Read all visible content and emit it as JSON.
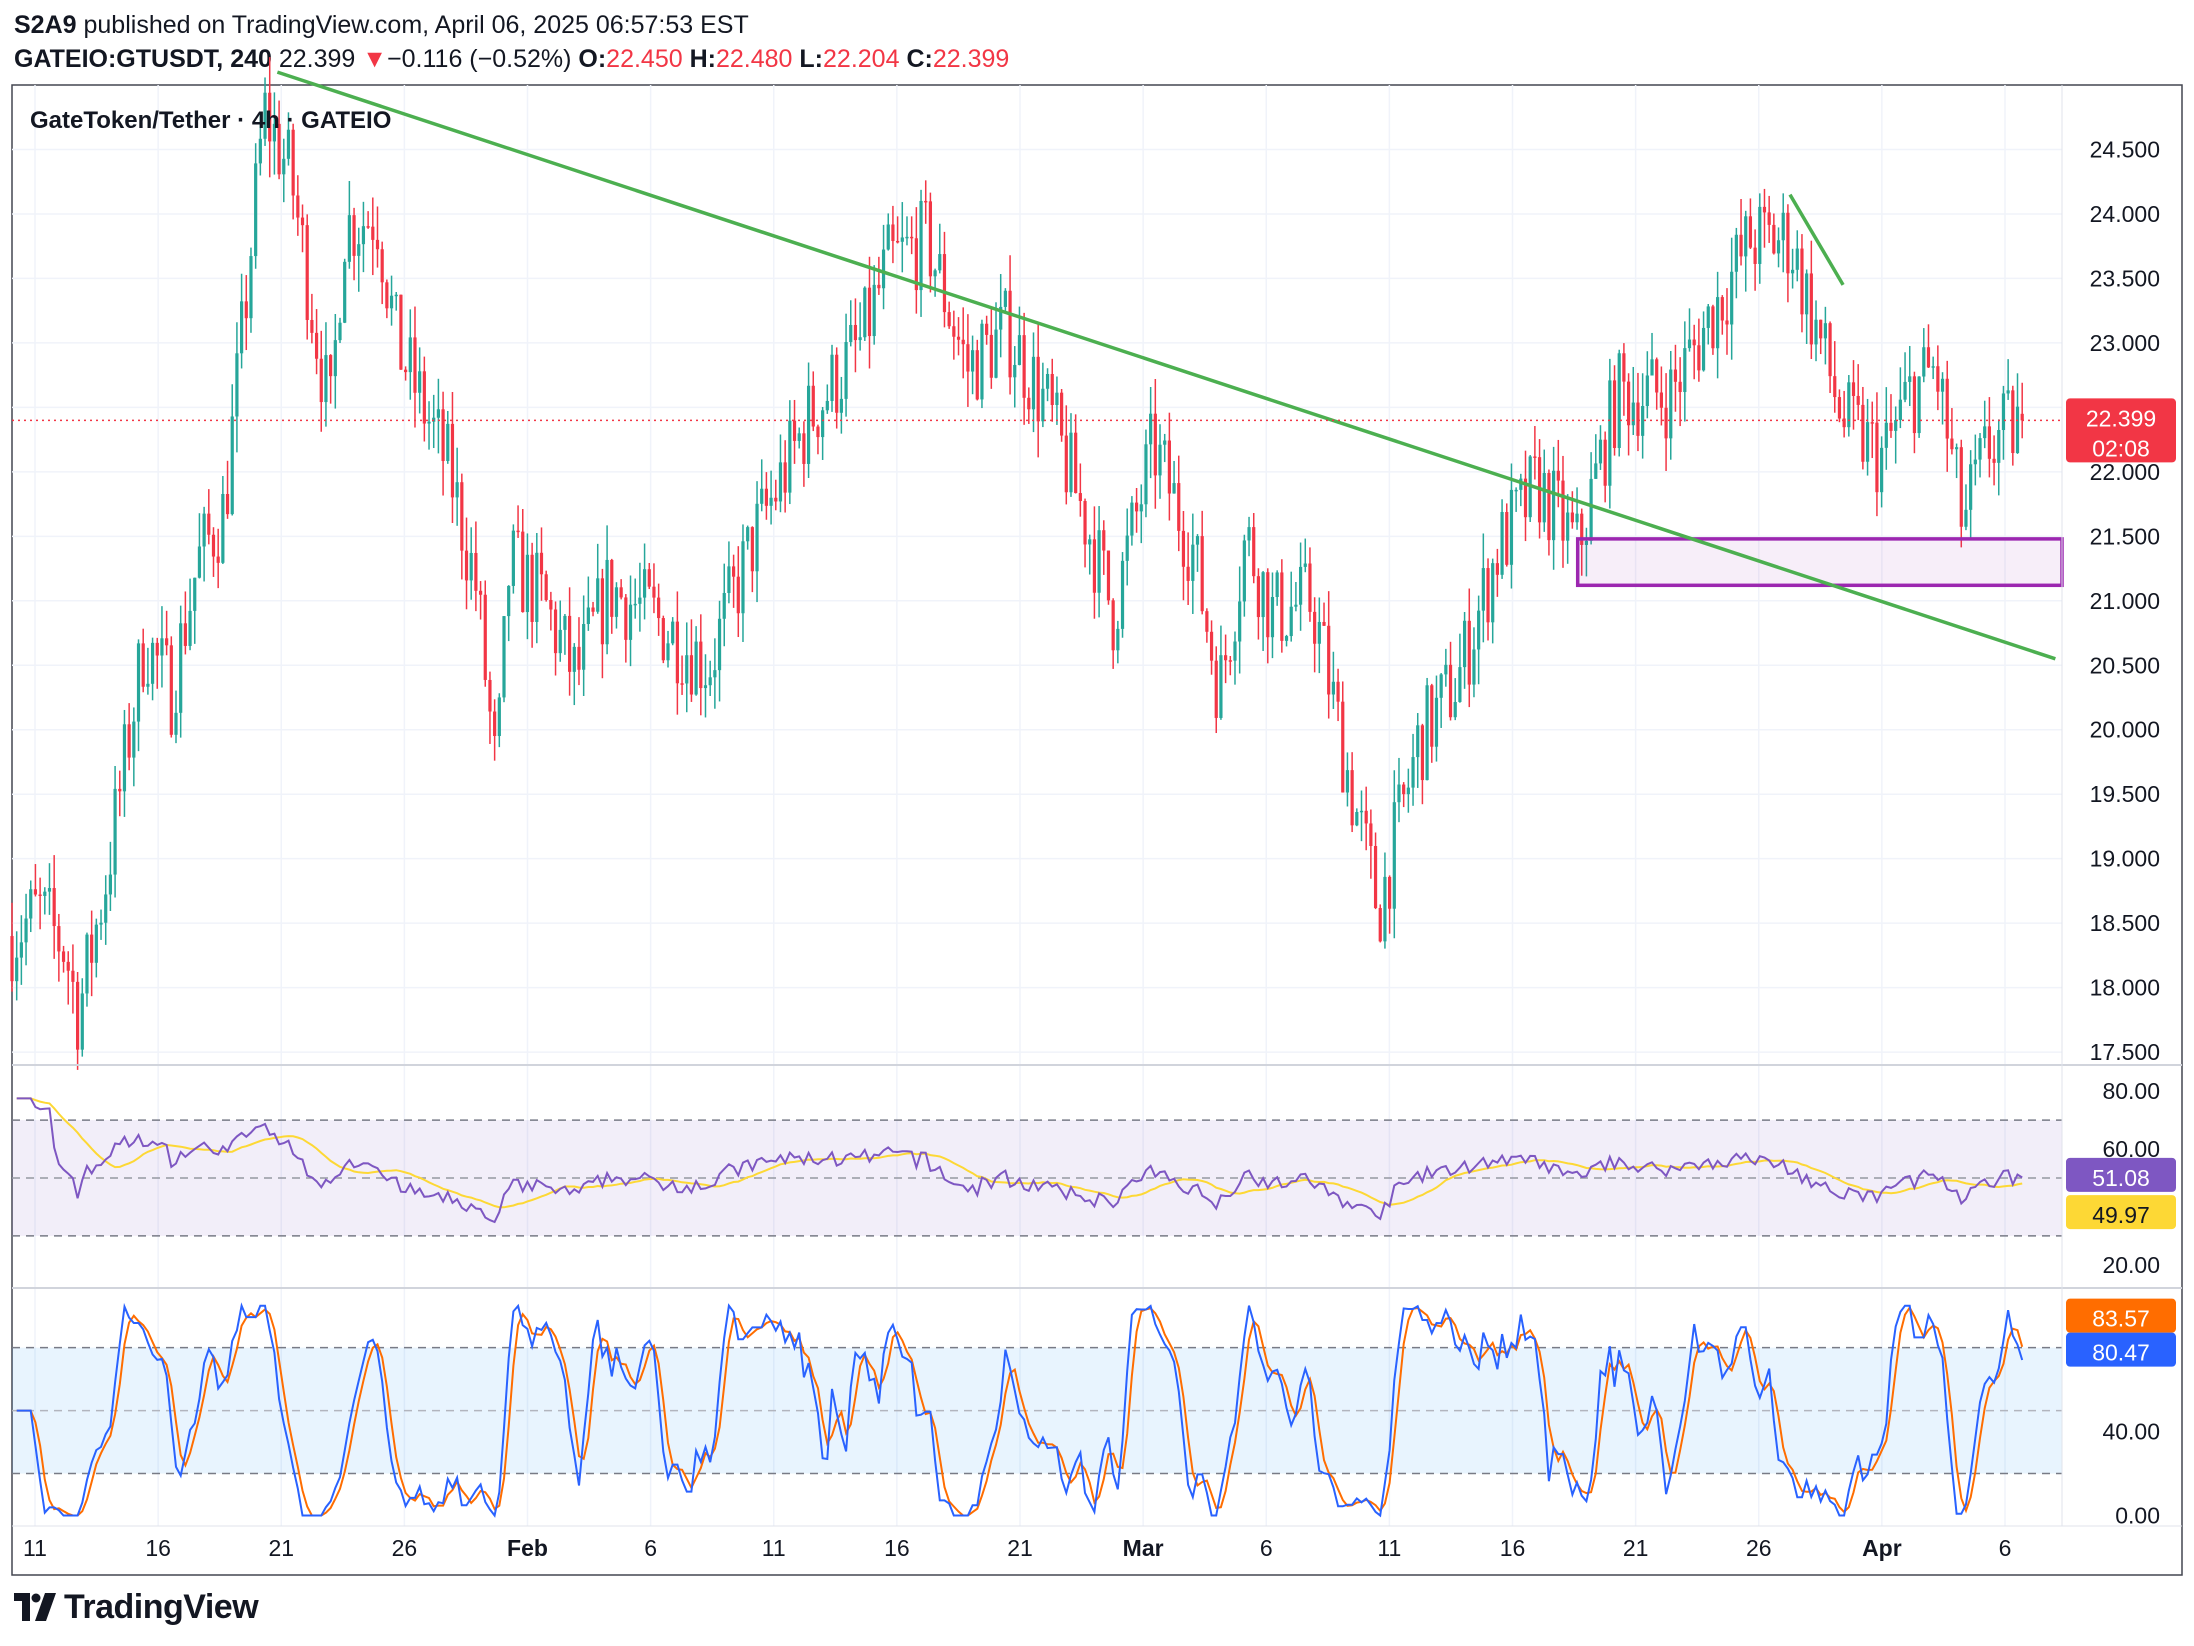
{
  "publish_line": {
    "author": "S2A9",
    "rest": " published on TradingView.com, April 06, 2025 06:57:53 EST"
  },
  "ohlc_line": {
    "symbol": "GATEIO:GTUSDT, 240",
    "last": "22.399",
    "arrow": "▼",
    "change": "−0.116 (−0.52%)",
    "o_label": "O:",
    "o": "22.450",
    "h_label": "H:",
    "h": "22.480",
    "l_label": "L:",
    "l": "22.204",
    "c_label": "C:",
    "c": "22.399"
  },
  "pane_title": "GateToken/Tether · 4h · GATEIO",
  "footer": {
    "brand": "TradingView"
  },
  "colors": {
    "up": "#26a69a",
    "down": "#f23645",
    "trend": "#4caf50",
    "zone": "#9c27b0",
    "rsi": "#7e57c2",
    "rsi_ma": "#fdd835",
    "stoch_k": "#2962ff",
    "stoch_d": "#ff6d00",
    "grid": "#f0f3fa"
  },
  "chart_data": {
    "type": "candlestick",
    "price_axis": {
      "min": 17.4,
      "max": 25.0,
      "ticks": [
        "24.500",
        "24.000",
        "23.500",
        "23.000",
        "22.500",
        "22.000",
        "21.500",
        "21.000",
        "20.500",
        "20.000",
        "19.500",
        "19.000",
        "18.500",
        "18.000",
        "17.500"
      ]
    },
    "x_axis": {
      "labels": [
        "11",
        "16",
        "21",
        "26",
        "Feb",
        "6",
        "11",
        "16",
        "21",
        "Mar",
        "6",
        "11",
        "16",
        "21",
        "26",
        "Apr",
        "6"
      ],
      "bold": [
        "Feb",
        "Mar",
        "Apr"
      ]
    },
    "last_price": {
      "value": "22.399",
      "countdown": "02:08"
    },
    "price_path": [
      [
        0,
        18.4
      ],
      [
        0.04,
        18.6
      ],
      [
        0.08,
        18.3
      ],
      [
        0.1,
        17.8
      ],
      [
        0.14,
        18.8
      ],
      [
        0.2,
        20.7
      ],
      [
        0.24,
        20.3
      ],
      [
        0.28,
        21.3
      ],
      [
        0.32,
        21.7
      ],
      [
        0.35,
        23.2
      ],
      [
        0.38,
        24.8
      ],
      [
        0.42,
        24.3
      ],
      [
        0.48,
        22.4
      ],
      [
        0.5,
        23.9
      ],
      [
        0.55,
        24.0
      ],
      [
        0.58,
        23.0
      ],
      [
        0.62,
        22.5
      ],
      [
        0.66,
        22.0
      ],
      [
        0.7,
        21.1
      ],
      [
        0.73,
        19.6
      ],
      [
        0.75,
        21.3
      ],
      [
        0.8,
        21.0
      ],
      [
        0.85,
        20.4
      ],
      [
        0.9,
        21.1
      ],
      [
        0.96,
        20.9
      ],
      [
        1.05,
        20.5
      ],
      [
        1.12,
        21.5
      ],
      [
        1.2,
        22.4
      ],
      [
        1.28,
        23.0
      ],
      [
        1.32,
        23.6
      ],
      [
        1.38,
        23.8
      ],
      [
        1.44,
        22.8
      ],
      [
        1.5,
        23.1
      ],
      [
        1.56,
        22.5
      ],
      [
        1.62,
        21.6
      ],
      [
        1.66,
        20.9
      ],
      [
        1.72,
        22.2
      ],
      [
        1.78,
        21.4
      ],
      [
        1.82,
        20.3
      ],
      [
        1.86,
        21.5
      ],
      [
        1.9,
        20.9
      ],
      [
        1.96,
        21.0
      ],
      [
        2.02,
        19.5
      ],
      [
        2.06,
        18.6
      ],
      [
        2.12,
        19.9
      ],
      [
        2.18,
        20.4
      ],
      [
        2.24,
        21.4
      ],
      [
        2.3,
        21.9
      ],
      [
        2.36,
        21.4
      ],
      [
        2.42,
        22.6
      ],
      [
        2.5,
        22.6
      ],
      [
        2.56,
        23.2
      ],
      [
        2.62,
        23.8
      ],
      [
        2.68,
        23.8
      ],
      [
        2.72,
        23.1
      ],
      [
        2.76,
        22.4
      ],
      [
        2.82,
        22.1
      ],
      [
        2.86,
        22.6
      ],
      [
        2.9,
        22.8
      ],
      [
        2.94,
        21.6
      ],
      [
        2.98,
        22.2
      ],
      [
        3.03,
        22.399
      ]
    ],
    "drawings": {
      "trendline_main": {
        "from": [
          0.4,
          25.1
        ],
        "to": [
          3.08,
          20.55
        ]
      },
      "trendline_short": {
        "from": [
          2.68,
          24.15
        ],
        "to": [
          2.76,
          23.45
        ]
      },
      "zone": {
        "x_start": 2.36,
        "top": 21.48,
        "bottom": 21.12
      }
    },
    "rsi": {
      "axis_ticks": [
        "80.00",
        "60.00",
        "20.00"
      ],
      "upper_band": 70,
      "lower_band": 30,
      "value": "51.08",
      "ma_value": "49.97"
    },
    "stoch_rsi": {
      "axis_ticks": [
        "40.00",
        "0.00"
      ],
      "upper_band": 80,
      "mid_band": 50,
      "lower_band": 20,
      "d_value": "83.57",
      "k_value": "80.47"
    }
  }
}
